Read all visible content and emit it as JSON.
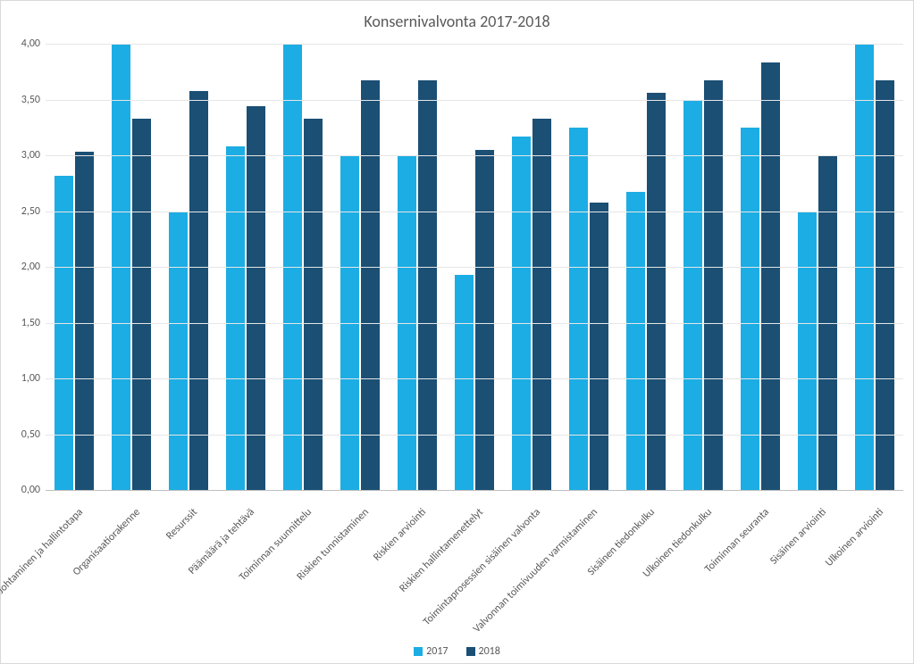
{
  "chart": {
    "type": "bar",
    "title": "Konsernivalvonta 2017-2018",
    "title_fontsize": 18,
    "title_color": "#595959",
    "background_color": "#ffffff",
    "plot_border_color": "#bfbfbf",
    "grid_color": "#e6e6e6",
    "label_fontsize": 12,
    "tick_fontsize": 12,
    "label_color": "#595959",
    "ylim_min": 0.0,
    "ylim_max": 4.0,
    "ytick_step": 0.5,
    "ytick_labels": [
      "0,00",
      "0,50",
      "1,00",
      "1,50",
      "2,00",
      "2,50",
      "3,00",
      "3,50",
      "4,00"
    ],
    "bar_group_width_ratio": 0.7,
    "bar_gap_ratio": 0.02,
    "categories": [
      "Johtaminen ja hallintotapa",
      "Organisaatiorakenne",
      "Resurssit",
      "Päämäärä ja tehtävä",
      "Toiminnan suunnittelu",
      "Riskien tunnistaminen",
      "Riskien arviointi",
      "Riskien hallintamenettelyt",
      "Toimintaprosessien sisäinen valvonta",
      "Valvonnan toimivuuden varmistaminen",
      "Sisäinen tiedonkulku",
      "Ulkoinen tiedonkulku",
      "Toiminnan seuranta",
      "Sisäinen arviointi",
      "Ulkoinen arviointi"
    ],
    "series": [
      {
        "name": "2017",
        "color": "#1cade4",
        "values": [
          2.82,
          4.0,
          2.5,
          3.08,
          4.0,
          3.0,
          3.0,
          1.93,
          3.17,
          3.25,
          2.67,
          3.5,
          3.25,
          2.5,
          4.0
        ]
      },
      {
        "name": "2018",
        "color": "#1b4f74",
        "values": [
          3.03,
          3.33,
          3.58,
          3.44,
          3.33,
          3.67,
          3.67,
          3.05,
          3.33,
          2.58,
          3.56,
          3.67,
          3.83,
          3.0,
          3.67
        ]
      }
    ],
    "legend": {
      "items": [
        {
          "label": "2017",
          "color": "#1cade4"
        },
        {
          "label": "2018",
          "color": "#1b4f74"
        }
      ],
      "fontsize": 12
    }
  }
}
